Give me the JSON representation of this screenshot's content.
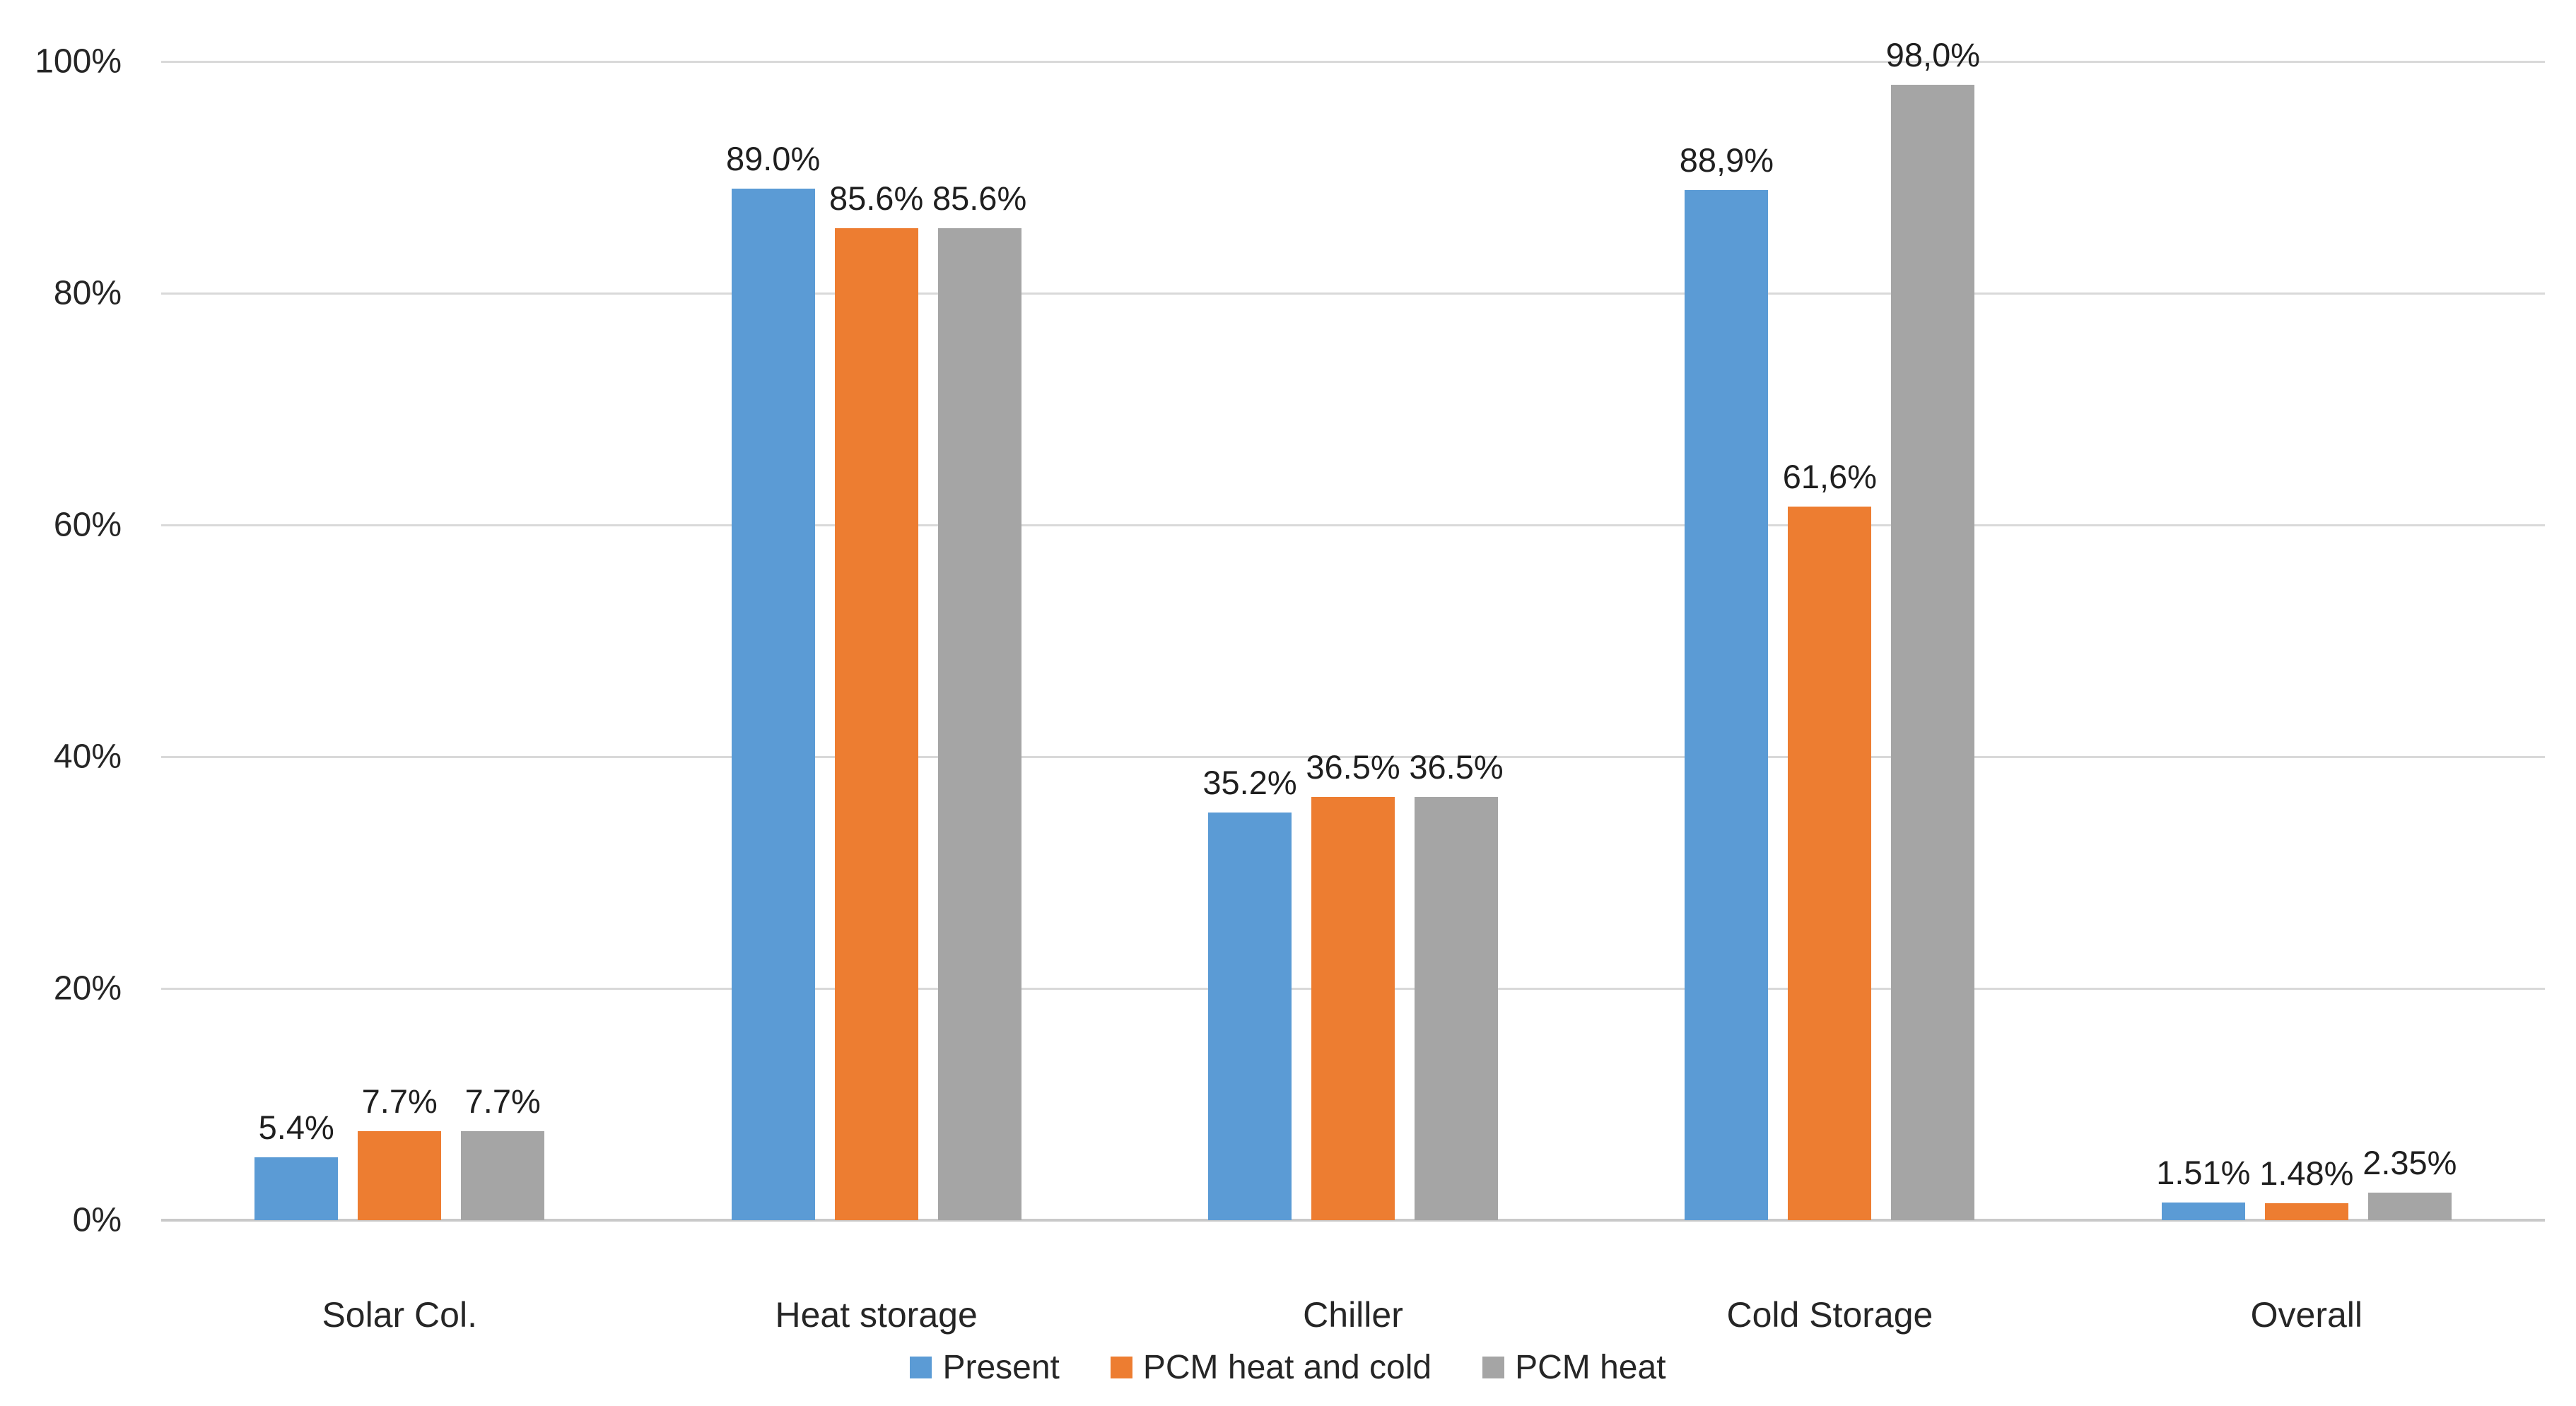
{
  "chart_data": {
    "type": "bar",
    "title": "",
    "xlabel": "",
    "ylabel": "",
    "categories": [
      "Solar Col.",
      "Heat storage",
      "Chiller",
      "Cold Storage",
      "Overall"
    ],
    "series": [
      {
        "name": "Present",
        "color": "#5B9BD5",
        "values": [
          5.4,
          89.0,
          35.2,
          88.9,
          1.51
        ],
        "labels": [
          "5.4%",
          "89.0%",
          "35.2%",
          "88,9%",
          "1.51%"
        ]
      },
      {
        "name": "PCM heat and cold",
        "color": "#ED7D31",
        "values": [
          7.7,
          85.6,
          36.5,
          61.6,
          1.48
        ],
        "labels": [
          "7.7%",
          "85.6%",
          "36.5%",
          "61,6%",
          "1.48%"
        ]
      },
      {
        "name": "PCM heat",
        "color": "#A5A5A5",
        "values": [
          7.7,
          85.6,
          36.5,
          98.0,
          2.35
        ],
        "labels": [
          "7.7%",
          "85.6%",
          "36.5%",
          "98,0%",
          "2.35%"
        ]
      }
    ],
    "y_axis": {
      "min": 0,
      "max": 100,
      "tick_step": 20,
      "ticks": [
        "0%",
        "20%",
        "40%",
        "60%",
        "80%",
        "100%"
      ]
    },
    "grid": true,
    "legend_position": "bottom",
    "legend": [
      "Present",
      "PCM heat and cold",
      "PCM heat"
    ]
  },
  "style_colors": {
    "gridline": "#d9d9d9",
    "axis_line": "#c9c9c9",
    "tick_text": "#262626",
    "label_text": "#1f1f1f",
    "background": "#ffffff"
  }
}
